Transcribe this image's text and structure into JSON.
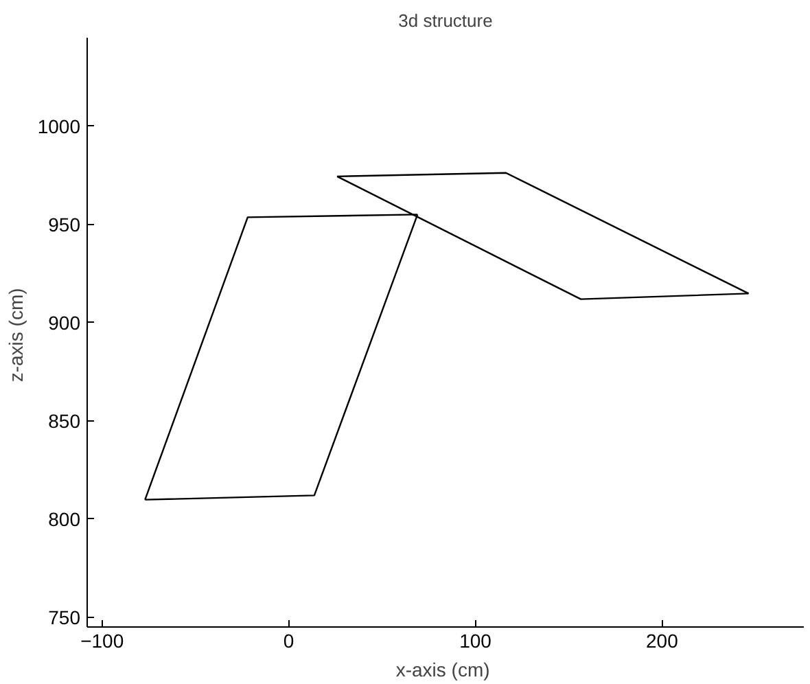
{
  "chart_data": {
    "type": "line",
    "title": "3d structure",
    "xlabel": "x-axis  (cm)",
    "ylabel": "z-axis  (cm)",
    "series": [
      {
        "color": "#000000",
        "x": [
          -77,
          13.7,
          69
        ],
        "values": [
          809.8,
          812,
          955
        ]
      },
      {
        "color": "#000000",
        "x": [
          -77,
          -22,
          69
        ],
        "values": [
          809.8,
          953.6,
          955
        ]
      },
      {
        "color": "#000000",
        "x": [
          25.9,
          116.4,
          246.4
        ],
        "values": [
          974.4,
          976.2,
          914.8
        ]
      },
      {
        "color": "#000000",
        "x": [
          25.9,
          156.5,
          246.4
        ],
        "values": [
          974.4,
          911.9,
          914.8
        ]
      }
    ],
    "xlim": [
      -108,
      276
    ],
    "ylim": [
      745,
      1045
    ],
    "xticks": [
      -100,
      0,
      100,
      200
    ],
    "yticks": [
      750,
      800,
      850,
      900,
      950,
      1000
    ],
    "grid": false,
    "marker": "none",
    "line_style": "solid"
  }
}
